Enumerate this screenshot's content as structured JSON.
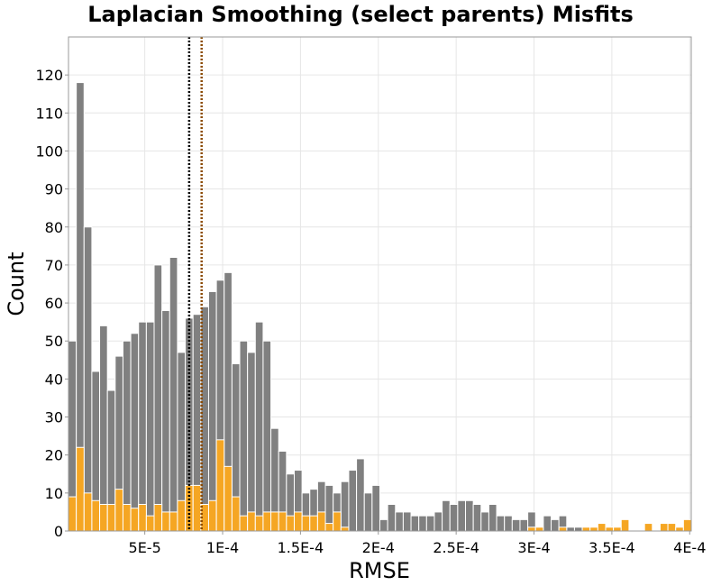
{
  "chart_data": {
    "type": "bar",
    "title": "Laplacian Smoothing (select parents) Misfits",
    "xlabel": "RMSE",
    "ylabel": "Count",
    "xlim": [
      1e-06,
      0.000401
    ],
    "ylim": [
      0,
      130
    ],
    "bin_width": 5e-06,
    "bin_start": 1e-06,
    "x_ticks": [
      5e-05,
      0.0001,
      0.00015,
      0.0002,
      0.00025,
      0.0003,
      0.00035,
      0.0004
    ],
    "x_tick_labels": [
      "5E-5",
      "1E-4",
      "1.5E-4",
      "2E-4",
      "2.5E-4",
      "3E-4",
      "3.5E-4",
      "4E-4"
    ],
    "y_ticks": [
      0,
      10,
      20,
      30,
      40,
      50,
      60,
      70,
      80,
      90,
      100,
      110,
      120
    ],
    "y_tick_labels": [
      "0",
      "10",
      "20",
      "30",
      "40",
      "50",
      "60",
      "70",
      "80",
      "90",
      "100",
      "110",
      "120"
    ],
    "grid": true,
    "series": [
      {
        "color": "#808080",
        "values": [
          50,
          118,
          80,
          42,
          54,
          37,
          46,
          50,
          52,
          55,
          55,
          70,
          58,
          72,
          47,
          56,
          57,
          59,
          63,
          66,
          68,
          44,
          50,
          47,
          55,
          50,
          27,
          21,
          15,
          16,
          10,
          11,
          13,
          12,
          10,
          13,
          16,
          19,
          10,
          12,
          3,
          7,
          5,
          5,
          4,
          4,
          4,
          5,
          8,
          7,
          8,
          8,
          7,
          5,
          7,
          4,
          4,
          3,
          3,
          5,
          1,
          4,
          3,
          4,
          1,
          1,
          1,
          0,
          0,
          0,
          0,
          0,
          0,
          0,
          0,
          0,
          0,
          0,
          0,
          0
        ]
      },
      {
        "color": "#f5a623",
        "values": [
          9,
          22,
          10,
          8,
          7,
          7,
          11,
          7,
          6,
          7,
          4,
          7,
          5,
          5,
          8,
          12,
          12,
          7,
          8,
          24,
          17,
          9,
          4,
          5,
          4,
          5,
          5,
          5,
          4,
          5,
          4,
          4,
          5,
          2,
          5,
          1,
          0,
          0,
          0,
          0,
          0,
          0,
          0,
          0,
          0,
          0,
          0,
          0,
          0,
          0,
          0,
          0,
          0,
          0,
          0,
          0,
          0,
          0,
          0,
          1,
          1,
          0,
          0,
          1,
          0,
          0,
          1,
          1,
          2,
          1,
          1,
          3,
          0,
          0,
          2,
          0,
          2,
          2,
          1,
          3
        ]
      }
    ],
    "reference_lines": [
      {
        "x": 7.85e-05,
        "color": "#000000",
        "style": "dotted"
      },
      {
        "x": 8.65e-05,
        "color": "#8b4a00",
        "style": "dotted"
      }
    ]
  }
}
